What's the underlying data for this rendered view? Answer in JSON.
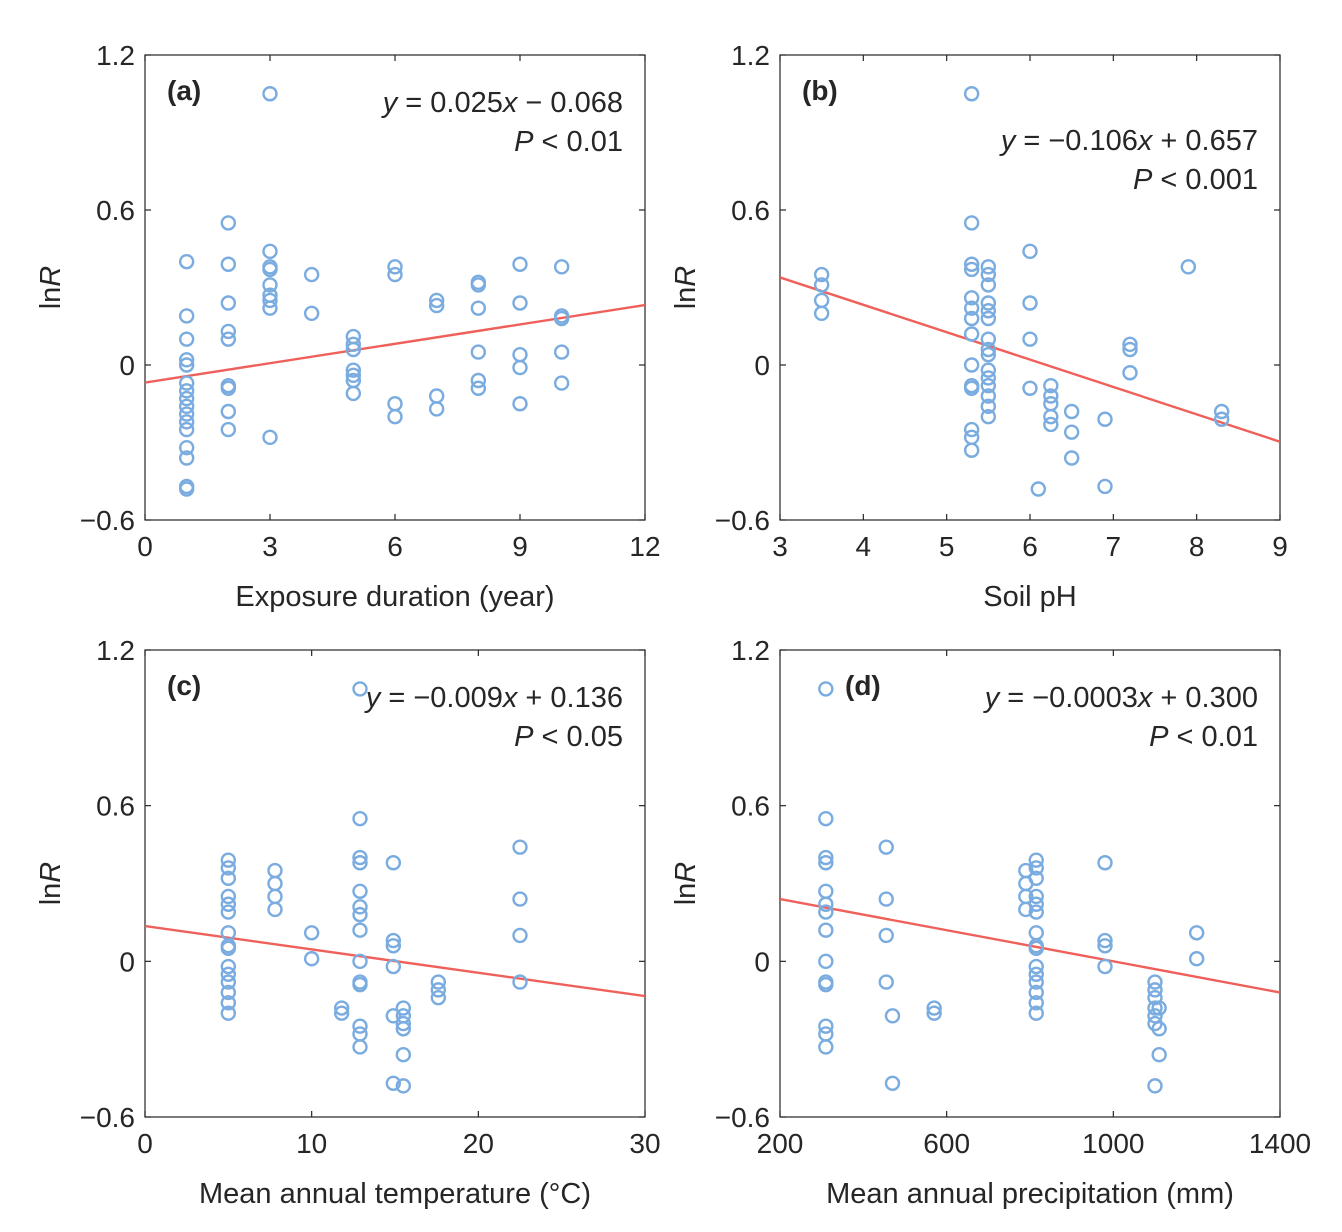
{
  "chart_data": [
    {
      "type": "scatter",
      "panel_label": "(a)",
      "xlabel": "Exposure duration (year)",
      "ylabel_base": "ln",
      "ylabel_italic": "R",
      "xlim": [
        0,
        12
      ],
      "ylim": [
        -0.6,
        1.2
      ],
      "xticks": [
        "0",
        "3",
        "6",
        "9",
        "12"
      ],
      "yticks": [
        "−0.6",
        "0",
        "0.6",
        "1.2"
      ],
      "equation": {
        "y": "y",
        "rest": " = 0.025",
        "x": "x",
        "tail": " − 0.068"
      },
      "pvalue": {
        "p": "P",
        "rest": " < 0.01"
      },
      "fit": {
        "slope": 0.025,
        "intercept": -0.068
      },
      "points": [
        [
          3,
          1.05
        ],
        [
          2,
          0.55
        ],
        [
          1,
          0.4
        ],
        [
          2,
          0.39
        ],
        [
          3,
          0.44
        ],
        [
          3,
          0.38
        ],
        [
          3,
          0.37
        ],
        [
          3,
          0.31
        ],
        [
          3,
          0.27
        ],
        [
          3,
          0.25
        ],
        [
          3,
          0.22
        ],
        [
          4,
          0.35
        ],
        [
          4,
          0.2
        ],
        [
          2,
          0.24
        ],
        [
          2,
          0.13
        ],
        [
          2,
          0.1
        ],
        [
          2,
          -0.08
        ],
        [
          2,
          -0.09
        ],
        [
          2,
          -0.18
        ],
        [
          2,
          -0.25
        ],
        [
          3,
          -0.28
        ],
        [
          1,
          0.19
        ],
        [
          1,
          0.1
        ],
        [
          1,
          0.02
        ],
        [
          1,
          0.0
        ],
        [
          1,
          -0.07
        ],
        [
          1,
          -0.1
        ],
        [
          1,
          -0.13
        ],
        [
          1,
          -0.16
        ],
        [
          1,
          -0.19
        ],
        [
          1,
          -0.22
        ],
        [
          1,
          -0.25
        ],
        [
          1,
          -0.32
        ],
        [
          1,
          -0.36
        ],
        [
          1,
          -0.47
        ],
        [
          1,
          -0.48
        ],
        [
          5,
          0.11
        ],
        [
          5,
          0.08
        ],
        [
          5,
          0.06
        ],
        [
          5,
          -0.02
        ],
        [
          5,
          -0.04
        ],
        [
          5,
          -0.06
        ],
        [
          5,
          -0.11
        ],
        [
          6,
          0.38
        ],
        [
          6,
          0.35
        ],
        [
          6,
          -0.15
        ],
        [
          6,
          -0.2
        ],
        [
          7,
          0.25
        ],
        [
          7,
          0.23
        ],
        [
          7,
          -0.12
        ],
        [
          7,
          -0.17
        ],
        [
          8,
          0.32
        ],
        [
          8,
          0.31
        ],
        [
          8,
          0.22
        ],
        [
          8,
          0.05
        ],
        [
          8,
          -0.06
        ],
        [
          8,
          -0.09
        ],
        [
          9,
          0.39
        ],
        [
          9,
          0.24
        ],
        [
          9,
          0.04
        ],
        [
          9,
          -0.01
        ],
        [
          9,
          -0.15
        ],
        [
          10,
          0.38
        ],
        [
          10,
          0.19
        ],
        [
          10,
          0.18
        ],
        [
          10,
          0.05
        ],
        [
          10,
          -0.07
        ]
      ]
    },
    {
      "type": "scatter",
      "panel_label": "(b)",
      "xlabel": "Soil pH",
      "ylabel_base": "ln",
      "ylabel_italic": "R",
      "xlim": [
        3,
        9
      ],
      "ylim": [
        -0.6,
        1.2
      ],
      "xticks": [
        "3",
        "4",
        "5",
        "6",
        "7",
        "8",
        "9"
      ],
      "yticks": [
        "−0.6",
        "0",
        "0.6",
        "1.2"
      ],
      "equation": {
        "y": "y",
        "rest": " = −0.106",
        "x": "x",
        "tail": " + 0.657"
      },
      "pvalue": {
        "p": "P",
        "rest": " < 0.001"
      },
      "fit": {
        "slope": -0.106,
        "intercept": 0.657
      },
      "points": [
        [
          3.5,
          0.35
        ],
        [
          3.5,
          0.31
        ],
        [
          3.5,
          0.25
        ],
        [
          3.5,
          0.2
        ],
        [
          5.3,
          1.05
        ],
        [
          5.3,
          0.55
        ],
        [
          5.3,
          0.39
        ],
        [
          5.3,
          0.37
        ],
        [
          5.3,
          0.26
        ],
        [
          5.3,
          0.22
        ],
        [
          5.3,
          0.18
        ],
        [
          5.3,
          0.12
        ],
        [
          5.3,
          0.0
        ],
        [
          5.3,
          -0.08
        ],
        [
          5.3,
          -0.09
        ],
        [
          5.3,
          -0.25
        ],
        [
          5.3,
          -0.28
        ],
        [
          5.3,
          -0.33
        ],
        [
          5.5,
          0.38
        ],
        [
          5.5,
          0.35
        ],
        [
          5.5,
          0.31
        ],
        [
          5.5,
          0.24
        ],
        [
          5.5,
          0.21
        ],
        [
          5.5,
          0.18
        ],
        [
          5.5,
          0.1
        ],
        [
          5.5,
          0.06
        ],
        [
          5.5,
          0.04
        ],
        [
          5.5,
          -0.02
        ],
        [
          5.5,
          -0.05
        ],
        [
          5.5,
          -0.08
        ],
        [
          5.5,
          -0.12
        ],
        [
          5.5,
          -0.16
        ],
        [
          5.5,
          -0.2
        ],
        [
          6.0,
          0.44
        ],
        [
          6.0,
          0.24
        ],
        [
          6.0,
          0.1
        ],
        [
          6.0,
          -0.09
        ],
        [
          6.1,
          -0.48
        ],
        [
          6.25,
          -0.08
        ],
        [
          6.25,
          -0.12
        ],
        [
          6.25,
          -0.15
        ],
        [
          6.25,
          -0.2
        ],
        [
          6.25,
          -0.23
        ],
        [
          6.5,
          -0.18
        ],
        [
          6.5,
          -0.26
        ],
        [
          6.5,
          -0.36
        ],
        [
          6.9,
          -0.21
        ],
        [
          6.9,
          -0.47
        ],
        [
          7.2,
          0.08
        ],
        [
          7.2,
          0.06
        ],
        [
          7.2,
          -0.03
        ],
        [
          7.9,
          0.38
        ],
        [
          8.3,
          -0.18
        ],
        [
          8.3,
          -0.21
        ]
      ]
    },
    {
      "type": "scatter",
      "panel_label": "(c)",
      "xlabel": "Mean annual temperature (°C)",
      "ylabel_base": "ln",
      "ylabel_italic": "R",
      "xlim": [
        0,
        30
      ],
      "ylim": [
        -0.6,
        1.2
      ],
      "xticks": [
        "0",
        "10",
        "20",
        "30"
      ],
      "yticks": [
        "−0.6",
        "0",
        "0.6",
        "1.2"
      ],
      "equation": {
        "y": "y",
        "rest": " = −0.009",
        "x": "x",
        "tail": " + 0.136"
      },
      "pvalue": {
        "p": "P",
        "rest": " < 0.05"
      },
      "fit": {
        "slope": -0.009,
        "intercept": 0.136
      },
      "points": [
        [
          5,
          0.39
        ],
        [
          5,
          0.36
        ],
        [
          5,
          0.32
        ],
        [
          5,
          0.25
        ],
        [
          5,
          0.22
        ],
        [
          5,
          0.19
        ],
        [
          5,
          0.11
        ],
        [
          5,
          0.06
        ],
        [
          5,
          0.05
        ],
        [
          5,
          -0.02
        ],
        [
          5,
          -0.05
        ],
        [
          5,
          -0.08
        ],
        [
          5,
          -0.12
        ],
        [
          5,
          -0.16
        ],
        [
          5,
          -0.2
        ],
        [
          7.8,
          0.35
        ],
        [
          7.8,
          0.3
        ],
        [
          7.8,
          0.25
        ],
        [
          7.8,
          0.2
        ],
        [
          10,
          0.11
        ],
        [
          10,
          0.01
        ],
        [
          11.8,
          -0.18
        ],
        [
          11.8,
          -0.2
        ],
        [
          12.9,
          1.05
        ],
        [
          12.9,
          0.55
        ],
        [
          12.9,
          0.4
        ],
        [
          12.9,
          0.38
        ],
        [
          12.9,
          0.27
        ],
        [
          12.9,
          0.21
        ],
        [
          12.9,
          0.18
        ],
        [
          12.9,
          0.12
        ],
        [
          12.9,
          0.0
        ],
        [
          12.9,
          -0.08
        ],
        [
          12.9,
          -0.09
        ],
        [
          12.9,
          -0.25
        ],
        [
          12.9,
          -0.28
        ],
        [
          12.9,
          -0.33
        ],
        [
          14.9,
          0.38
        ],
        [
          14.9,
          0.08
        ],
        [
          14.9,
          0.06
        ],
        [
          14.9,
          -0.02
        ],
        [
          14.9,
          -0.21
        ],
        [
          14.9,
          -0.47
        ],
        [
          15.5,
          -0.18
        ],
        [
          15.5,
          -0.21
        ],
        [
          15.5,
          -0.24
        ],
        [
          15.5,
          -0.26
        ],
        [
          15.5,
          -0.36
        ],
        [
          15.5,
          -0.48
        ],
        [
          17.6,
          -0.08
        ],
        [
          17.6,
          -0.11
        ],
        [
          17.6,
          -0.14
        ],
        [
          22.5,
          0.44
        ],
        [
          22.5,
          0.24
        ],
        [
          22.5,
          0.1
        ],
        [
          22.5,
          -0.08
        ]
      ]
    },
    {
      "type": "scatter",
      "panel_label": "(d)",
      "xlabel": "Mean annual precipitation (mm)",
      "ylabel_base": "ln",
      "ylabel_italic": "R",
      "xlim": [
        200,
        1400
      ],
      "ylim": [
        -0.6,
        1.2
      ],
      "xticks": [
        "200",
        "600",
        "1000",
        "1400"
      ],
      "yticks": [
        "−0.6",
        "0",
        "0.6",
        "1.2"
      ],
      "equation": {
        "y": "y",
        "rest": " = −0.0003",
        "x": "x",
        "tail": " + 0.300"
      },
      "pvalue": {
        "p": "P",
        "rest": " < 0.01"
      },
      "fit": {
        "slope": -0.0003,
        "intercept": 0.3
      },
      "points": [
        [
          310,
          1.05
        ],
        [
          310,
          0.55
        ],
        [
          310,
          0.4
        ],
        [
          310,
          0.38
        ],
        [
          310,
          0.27
        ],
        [
          310,
          0.22
        ],
        [
          310,
          0.19
        ],
        [
          310,
          0.12
        ],
        [
          310,
          0.0
        ],
        [
          310,
          -0.08
        ],
        [
          310,
          -0.09
        ],
        [
          310,
          -0.25
        ],
        [
          310,
          -0.28
        ],
        [
          310,
          -0.33
        ],
        [
          455,
          0.44
        ],
        [
          455,
          0.24
        ],
        [
          455,
          0.1
        ],
        [
          455,
          -0.08
        ],
        [
          470,
          -0.21
        ],
        [
          470,
          -0.47
        ],
        [
          570,
          -0.18
        ],
        [
          570,
          -0.2
        ],
        [
          790,
          0.35
        ],
        [
          790,
          0.3
        ],
        [
          790,
          0.25
        ],
        [
          790,
          0.2
        ],
        [
          815,
          0.39
        ],
        [
          815,
          0.36
        ],
        [
          815,
          0.32
        ],
        [
          815,
          0.25
        ],
        [
          815,
          0.22
        ],
        [
          815,
          0.19
        ],
        [
          815,
          0.11
        ],
        [
          815,
          0.06
        ],
        [
          815,
          0.05
        ],
        [
          815,
          -0.02
        ],
        [
          815,
          -0.05
        ],
        [
          815,
          -0.08
        ],
        [
          815,
          -0.12
        ],
        [
          815,
          -0.16
        ],
        [
          815,
          -0.2
        ],
        [
          980,
          0.38
        ],
        [
          980,
          0.08
        ],
        [
          980,
          0.06
        ],
        [
          980,
          -0.02
        ],
        [
          1100,
          -0.08
        ],
        [
          1100,
          -0.11
        ],
        [
          1100,
          -0.14
        ],
        [
          1100,
          -0.18
        ],
        [
          1100,
          -0.21
        ],
        [
          1100,
          -0.24
        ],
        [
          1100,
          -0.48
        ],
        [
          1110,
          -0.18
        ],
        [
          1110,
          -0.26
        ],
        [
          1110,
          -0.36
        ],
        [
          1200,
          0.11
        ],
        [
          1200,
          0.01
        ]
      ]
    }
  ],
  "colors": {
    "points": "#7aace0",
    "fit": "#f0605a",
    "axis": "#262626"
  }
}
